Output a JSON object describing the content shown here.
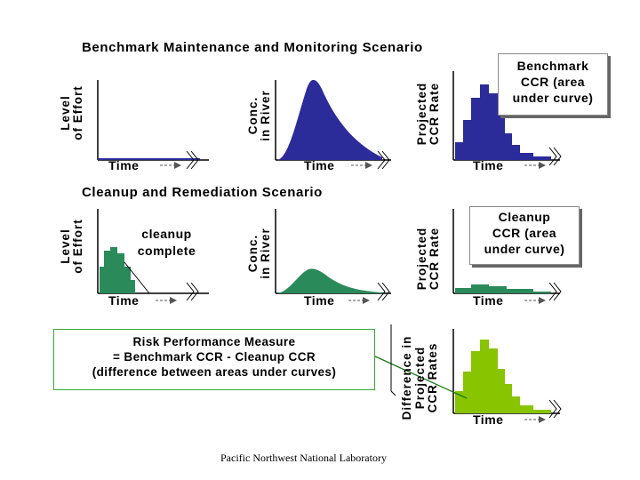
{
  "top": {
    "title": "Benchmark Maintenance and Monitoring Scenario",
    "effort_label_line1": "Level",
    "effort_label_line2": "of Effort",
    "conc_label_line1": "Conc.",
    "conc_label_line2": "in River",
    "ccr_label_line1": "Projected",
    "ccr_label_line2": "CCR Rate",
    "time_label": "Time",
    "ccr_box_line1": "Benchmark",
    "ccr_box_line2": "CCR (area",
    "ccr_box_line3": "under curve)"
  },
  "middle": {
    "title": "Cleanup and Remediation Scenario",
    "effort_label_line1": "Level",
    "effort_label_line2": "of Effort",
    "cleanup_note_line1": "cleanup",
    "cleanup_note_line2": "complete",
    "conc_label_line1": "Conc.",
    "conc_label_line2": "in River",
    "ccr_label_line1": "Projected",
    "ccr_label_line2": "CCR Rate",
    "time_label": "Time",
    "ccr_box_line1": "Cleanup",
    "ccr_box_line2": "CCR (area",
    "ccr_box_line3": "under curve)"
  },
  "bottom": {
    "risk_line1": "Risk Performance Measure",
    "risk_line2": "= Benchmark CCR - Cleanup CCR",
    "risk_line3": "(difference between areas under curves)",
    "diff_label_line1": "Difference in",
    "diff_label_line2": "Projected",
    "diff_label_line3": "CCR Rates",
    "time_label": "Time"
  },
  "footer": "Pacific Northwest National Laboratory",
  "colors": {
    "benchmark": "#2b2b9a",
    "cleanup": "#2a8a5a",
    "difference": "#88c400"
  }
}
